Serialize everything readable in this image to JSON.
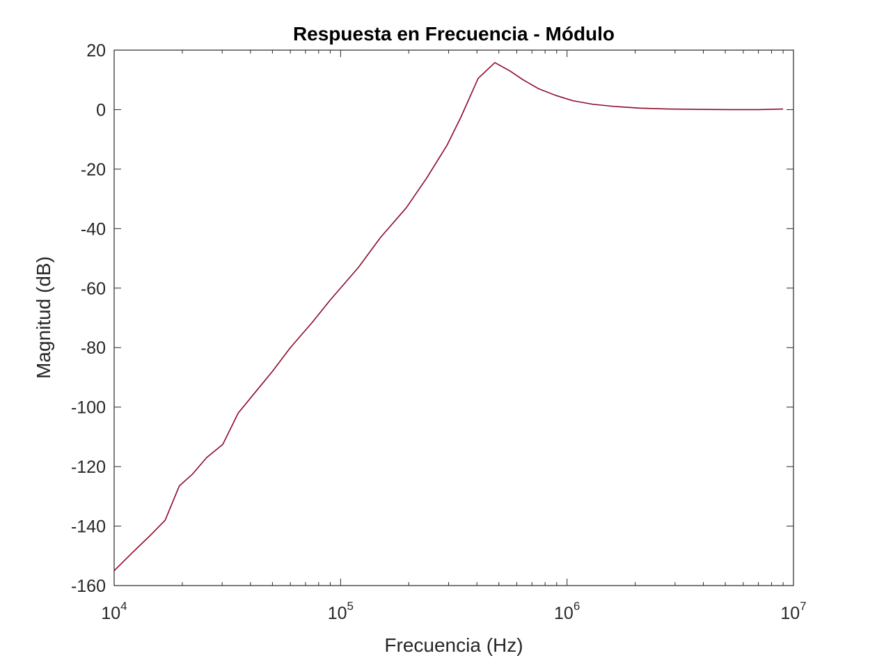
{
  "chart_data": {
    "type": "line",
    "title": "Respuesta en Frecuencia - Módulo",
    "xlabel": "Frecuencia (Hz)",
    "ylabel": "Magnitud (dB)",
    "xscale": "log",
    "xlim": [
      10000,
      10000000
    ],
    "ylim": [
      -160,
      20
    ],
    "grid": false,
    "x_ticks": [
      {
        "base": "10",
        "exp": "4",
        "value": 10000
      },
      {
        "base": "10",
        "exp": "5",
        "value": 100000
      },
      {
        "base": "10",
        "exp": "6",
        "value": 1000000
      },
      {
        "base": "10",
        "exp": "7",
        "value": 10000000
      }
    ],
    "y_ticks": [
      20,
      0,
      -20,
      -40,
      -60,
      -80,
      -100,
      -120,
      -140,
      -160
    ],
    "y_tick_labels": [
      "20",
      "0",
      "-20",
      "-40",
      "-60",
      "-80",
      "-100",
      "-120",
      "-140",
      "-160"
    ],
    "series": [
      {
        "color": "#8b0a2a",
        "x": [
          10000,
          12000,
          14500,
          16800,
          19400,
          22200,
          25600,
          30200,
          35300,
          42000,
          50000,
          60000,
          75000,
          90000,
          120000,
          150000,
          195000,
          240000,
          295000,
          340000,
          405000,
          480000,
          560000,
          640000,
          750000,
          890000,
          1060000,
          1300000,
          1600000,
          2100000,
          2800000,
          3800000,
          5200000,
          7000000,
          9000000
        ],
        "y": [
          -155,
          -149,
          -143,
          -138,
          -126.5,
          -122.5,
          -117,
          -112.5,
          -102,
          -95,
          -88,
          -80,
          -71.5,
          -64,
          -53,
          -43,
          -33,
          -23,
          -12,
          -2.5,
          10.5,
          15.8,
          13,
          10,
          7,
          4.8,
          3,
          1.8,
          1.1,
          0.5,
          0.2,
          0.1,
          0,
          0,
          0.2
        ]
      }
    ]
  }
}
